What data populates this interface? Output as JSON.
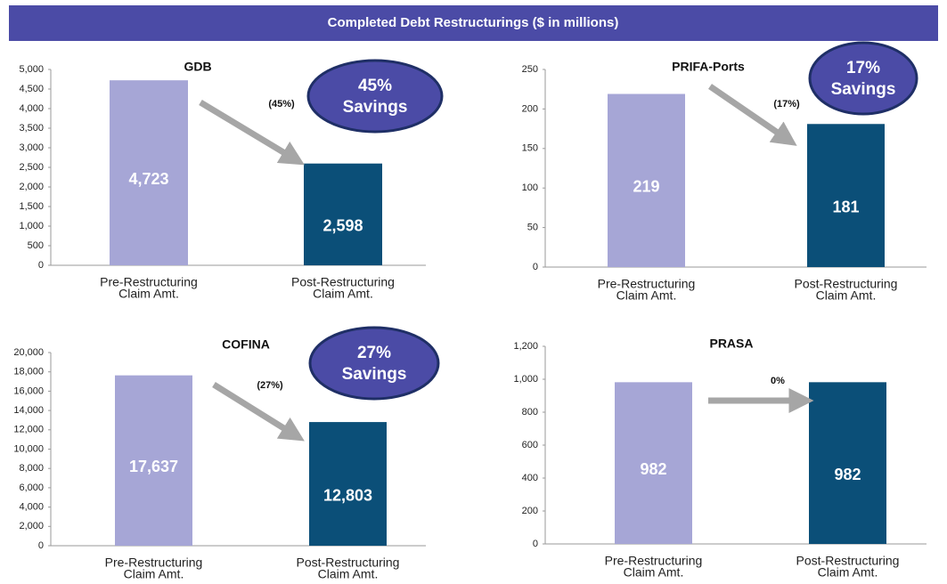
{
  "header": {
    "title": "Completed Debt Restructurings ($ in millions)"
  },
  "chart_data": [
    {
      "type": "bar",
      "title": "GDB",
      "categories": [
        [
          "Pre-Restructuring",
          "Claim Amt."
        ],
        [
          "Post-Restructuring",
          "Claim Amt."
        ]
      ],
      "values": [
        4723,
        2598
      ],
      "value_labels": [
        "4,723",
        "2,598"
      ],
      "colors": [
        "#a6a6d6",
        "#0b4f78"
      ],
      "ylim": [
        0,
        5000
      ],
      "yticks": [
        0,
        500,
        {
          "value": 1000,
          "label": "1,000"
        },
        {
          "value": 1500,
          "label": "1,500"
        },
        {
          "value": 2000,
          "label": "2,000"
        },
        {
          "value": 2500,
          "label": "2,500"
        },
        {
          "value": 3000,
          "label": "3,000"
        },
        {
          "value": 3500,
          "label": "3,500"
        },
        {
          "value": 4000,
          "label": "4,000"
        },
        {
          "value": 4500,
          "label": "4,500"
        },
        {
          "value": 5000,
          "label": "5,000"
        }
      ],
      "annotation": "(45%)",
      "badge": [
        "45%",
        "Savings"
      ]
    },
    {
      "type": "bar",
      "title": "PRIFA-Ports",
      "categories": [
        [
          "Pre-Restructuring",
          "Claim Amt."
        ],
        [
          "Post-Restructuring",
          "Claim Amt."
        ]
      ],
      "values": [
        219,
        181
      ],
      "colors": [
        "#a6a6d6",
        "#0b4f78"
      ],
      "ylim": [
        0,
        250
      ],
      "yticks": [
        0,
        50,
        100,
        150,
        200,
        250
      ],
      "annotation": "(17%)",
      "badge": [
        "17%",
        "Savings"
      ]
    },
    {
      "type": "bar",
      "title": "COFINA",
      "categories": [
        [
          "Pre-Restructuring",
          "Claim Amt."
        ],
        [
          "Post-Restructuring",
          "Claim Amt."
        ]
      ],
      "values": [
        17637,
        12803
      ],
      "value_labels": [
        "17,637",
        "12,803"
      ],
      "colors": [
        "#a6a6d6",
        "#0b4f78"
      ],
      "ylim": [
        0,
        20000
      ],
      "yticks": [
        0,
        {
          "value": 2000,
          "label": "2,000"
        },
        {
          "value": 4000,
          "label": "4,000"
        },
        {
          "value": 6000,
          "label": "6,000"
        },
        {
          "value": 8000,
          "label": "8,000"
        },
        {
          "value": 10000,
          "label": "10,000"
        },
        {
          "value": 12000,
          "label": "12,000"
        },
        {
          "value": 14000,
          "label": "14,000"
        },
        {
          "value": 16000,
          "label": "16,000"
        },
        {
          "value": 18000,
          "label": "18,000"
        },
        {
          "value": 20000,
          "label": "20,000"
        }
      ],
      "annotation": "(27%)",
      "badge": [
        "27%",
        "Savings"
      ]
    },
    {
      "type": "bar",
      "title": "PRASA",
      "categories": [
        [
          "Pre-Restructuring",
          "Claim Amt."
        ],
        [
          "Post-Restructuring",
          "Claim Amt."
        ]
      ],
      "values": [
        982,
        982
      ],
      "colors": [
        "#a6a6d6",
        "#0b4f78"
      ],
      "ylim": [
        0,
        1200
      ],
      "yticks": [
        0,
        200,
        400,
        600,
        800,
        {
          "value": 1000,
          "label": "1,000"
        },
        {
          "value": 1200,
          "label": "1,200"
        }
      ],
      "annotation": "0%"
    }
  ]
}
